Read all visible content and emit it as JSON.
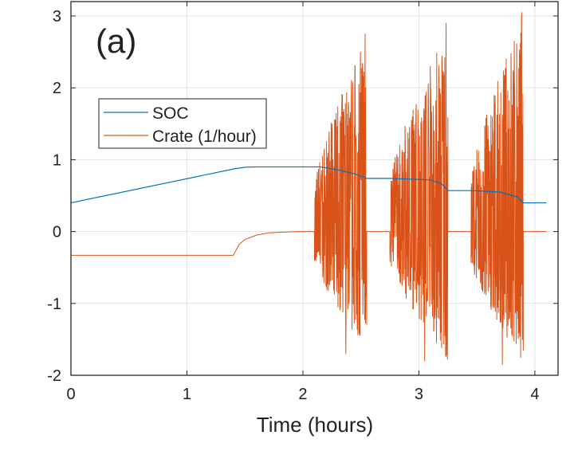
{
  "chart_data": {
    "type": "line",
    "title": "",
    "panel_label": "(a)",
    "xlabel": "Time (hours)",
    "ylabel": "",
    "xlim": [
      0,
      4.2
    ],
    "ylim": [
      -2,
      3.2
    ],
    "xticks": [
      0,
      1,
      2,
      3,
      4
    ],
    "yticks": [
      -2,
      -1,
      0,
      1,
      2,
      3
    ],
    "grid": true,
    "legend_position": "upper-left",
    "series": [
      {
        "name": "SOC",
        "color": "#0072BD",
        "x": [
          0,
          1.4,
          1.5,
          1.6,
          2.15,
          2.3,
          2.45,
          2.55,
          2.75,
          3.1,
          3.2,
          3.25,
          3.45,
          3.7,
          3.85,
          3.9,
          4.1
        ],
        "y": [
          0.4,
          0.87,
          0.895,
          0.9,
          0.9,
          0.86,
          0.8,
          0.74,
          0.74,
          0.72,
          0.66,
          0.57,
          0.57,
          0.55,
          0.48,
          0.4,
          0.4
        ]
      },
      {
        "name": "Crate (1/hour)",
        "color": "#D95319",
        "x": [
          0,
          1.4,
          1.45,
          1.5,
          1.6,
          1.7,
          1.8,
          1.95,
          2.1
        ],
        "y": [
          -0.33,
          -0.33,
          -0.18,
          -0.11,
          -0.05,
          -0.02,
          -0.01,
          0,
          0
        ],
        "noisy_segments": [
          {
            "x": [
              2.1,
              2.55
            ],
            "min": -1.7,
            "max": 2.75
          },
          {
            "x": [
              2.75,
              3.25
            ],
            "min": -1.8,
            "max": 2.9
          },
          {
            "x": [
              3.45,
              3.9
            ],
            "min": -1.85,
            "max": 3.05
          }
        ],
        "zero_segments": [
          [
            2.55,
            2.75
          ],
          [
            3.25,
            3.45
          ],
          [
            3.9,
            4.1
          ]
        ]
      }
    ]
  }
}
